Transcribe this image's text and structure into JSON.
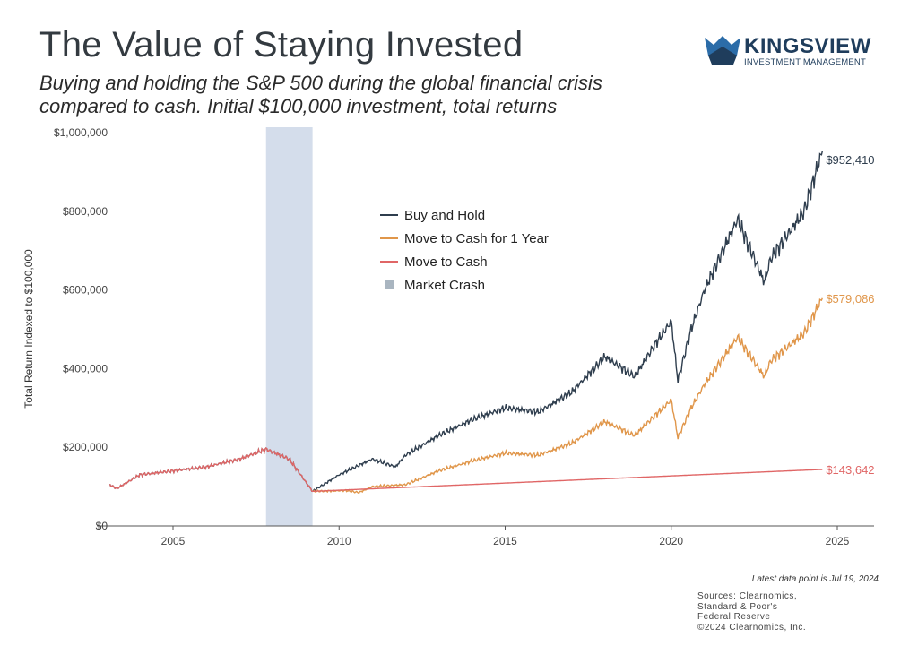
{
  "title": "The Value of Staying Invested",
  "subtitle_line1": "Buying and holding the S&P 500 during the global financial crisis",
  "subtitle_line2": "compared to cash. Initial $100,000 investment, total returns",
  "logo": {
    "brand": "KINGSVIEW",
    "tagline": "INVESTMENT MANAGEMENT",
    "color": "#1f3d5c"
  },
  "footer": {
    "note": "Latest data point is Jul 19, 2024",
    "sources": [
      "Sources: Clearnomics,",
      "Standard & Poor's",
      "Federal Reserve",
      "©2024 Clearnomics, Inc."
    ]
  },
  "chart_data": {
    "type": "line",
    "ylabel": "Total Return Indexed to $100,000",
    "xlim": [
      2003,
      2026.5
    ],
    "ylim": [
      0,
      1000000
    ],
    "xticks": [
      2005,
      2010,
      2015,
      2020,
      2025
    ],
    "yticks": [
      {
        "v": 0,
        "label": "$0"
      },
      {
        "v": 200000,
        "label": "$200,000"
      },
      {
        "v": 400000,
        "label": "$400,000"
      },
      {
        "v": 600000,
        "label": "$600,000"
      },
      {
        "v": 800000,
        "label": "$800,000"
      },
      {
        "v": 1000000,
        "label": "$1,000,000"
      }
    ],
    "grid": false,
    "legend_position": "upper-center",
    "shaded_region": {
      "name": "Market Crash",
      "x": [
        2007.8,
        2009.2
      ],
      "color": "#c9d5e6"
    },
    "series": [
      {
        "name": "Buy and Hold",
        "color": "#2f3e4e",
        "end_label": "$952,410",
        "points": [
          [
            2003.1,
            105000
          ],
          [
            2003.3,
            95000
          ],
          [
            2004,
            130000
          ],
          [
            2005,
            140000
          ],
          [
            2006,
            150000
          ],
          [
            2007,
            170000
          ],
          [
            2007.8,
            195000
          ],
          [
            2008.5,
            170000
          ],
          [
            2009.2,
            88000
          ],
          [
            2010,
            130000
          ],
          [
            2011,
            170000
          ],
          [
            2011.7,
            150000
          ],
          [
            2012,
            180000
          ],
          [
            2013,
            230000
          ],
          [
            2014,
            270000
          ],
          [
            2015,
            300000
          ],
          [
            2016,
            290000
          ],
          [
            2017,
            340000
          ],
          [
            2018,
            430000
          ],
          [
            2018.9,
            380000
          ],
          [
            2019.5,
            460000
          ],
          [
            2020,
            520000
          ],
          [
            2020.2,
            370000
          ],
          [
            2020.6,
            500000
          ],
          [
            2021,
            600000
          ],
          [
            2022,
            780000
          ],
          [
            2022.8,
            620000
          ],
          [
            2023,
            680000
          ],
          [
            2024,
            800000
          ],
          [
            2024.55,
            952410
          ]
        ]
      },
      {
        "name": "Move to Cash for 1 Year",
        "color": "#e0964a",
        "end_label": "$579,086",
        "points": [
          [
            2009.2,
            88000
          ],
          [
            2010.2,
            90000
          ],
          [
            2010.6,
            85000
          ],
          [
            2011,
            100000
          ],
          [
            2012,
            105000
          ],
          [
            2013,
            140000
          ],
          [
            2014,
            165000
          ],
          [
            2015,
            185000
          ],
          [
            2016,
            180000
          ],
          [
            2017,
            210000
          ],
          [
            2018,
            265000
          ],
          [
            2018.9,
            230000
          ],
          [
            2019.5,
            280000
          ],
          [
            2020,
            320000
          ],
          [
            2020.2,
            225000
          ],
          [
            2020.6,
            300000
          ],
          [
            2021,
            360000
          ],
          [
            2022,
            480000
          ],
          [
            2022.8,
            380000
          ],
          [
            2023,
            420000
          ],
          [
            2024,
            490000
          ],
          [
            2024.55,
            579086
          ]
        ]
      },
      {
        "name": "Move to Cash",
        "color": "#e06666",
        "end_label": "$143,642",
        "points": [
          [
            2003.1,
            105000
          ],
          [
            2003.3,
            95000
          ],
          [
            2004,
            130000
          ],
          [
            2005,
            140000
          ],
          [
            2006,
            150000
          ],
          [
            2007,
            170000
          ],
          [
            2007.8,
            195000
          ],
          [
            2008.5,
            170000
          ],
          [
            2009.2,
            88000
          ],
          [
            2024.55,
            143642
          ]
        ]
      }
    ]
  }
}
